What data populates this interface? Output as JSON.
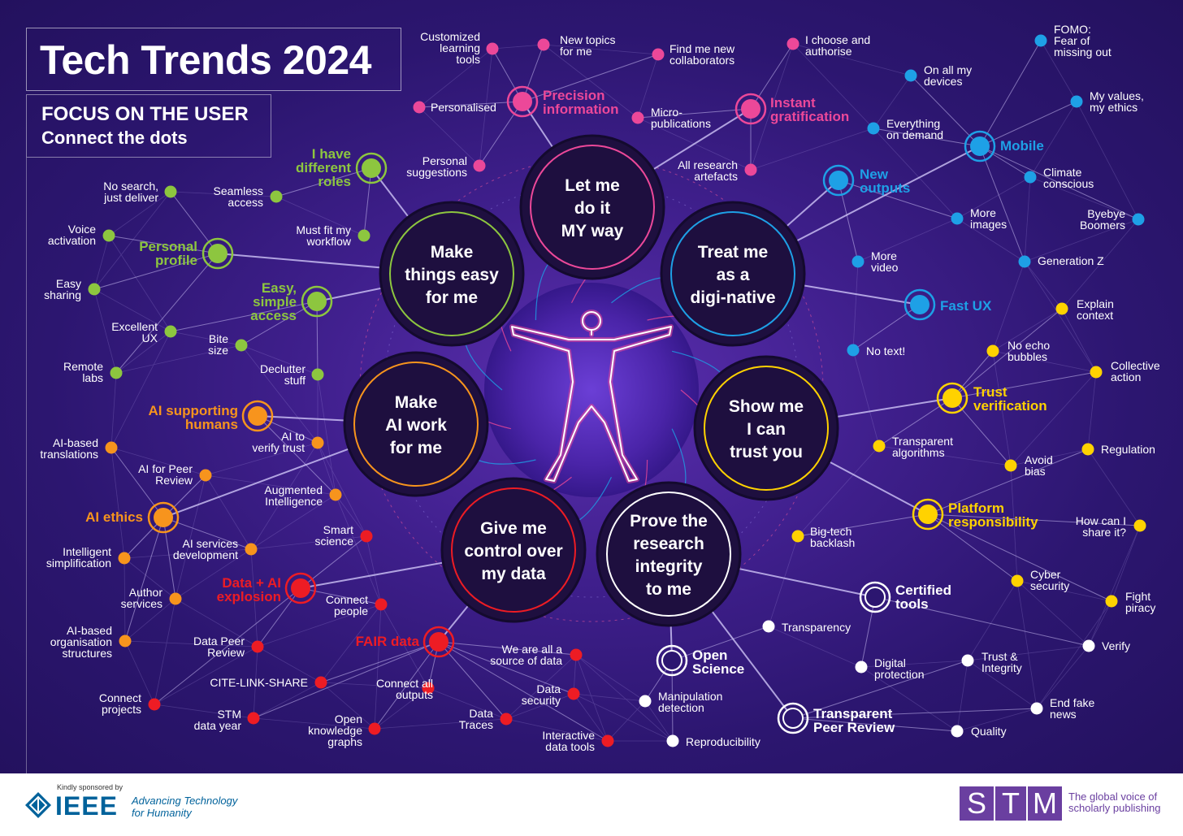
{
  "title": "Tech Trends 2024",
  "subtitle": {
    "line1": "FOCUS ON THE USER",
    "line2": "Connect the dots"
  },
  "colors": {
    "green": "#8dc63f",
    "orange": "#f7941d",
    "red": "#ed1c24",
    "pink": "#ec4899",
    "blue": "#1ea0e6",
    "yellow": "#ffd200",
    "white": "#ffffff",
    "background": "#2c1670"
  },
  "center_figure": "vitruvian-figure-icon",
  "themes": [
    {
      "id": "make-easy",
      "text": "Make\nthings easy\nfor me",
      "color": "green"
    },
    {
      "id": "my-way",
      "text": "Let me\ndo it\nMY way",
      "color": "pink"
    },
    {
      "id": "digi-native",
      "text": "Treat me\nas a\ndigi-native",
      "color": "blue"
    },
    {
      "id": "ai-work",
      "text": "Make\nAI work\nfor me",
      "color": "orange"
    },
    {
      "id": "trust",
      "text": "Show me\nI can\ntrust you",
      "color": "yellow"
    },
    {
      "id": "control-data",
      "text": "Give me\ncontrol over\nmy data",
      "color": "red"
    },
    {
      "id": "integrity",
      "text": "Prove the\nresearch\nintegrity\nto me",
      "color": "white"
    }
  ],
  "hubs": [
    {
      "id": "different-roles",
      "text": "I have\ndifferent\nroles",
      "color": "green",
      "theme": "make-easy"
    },
    {
      "id": "personal-profile",
      "text": "Personal\nprofile",
      "color": "green",
      "theme": "make-easy"
    },
    {
      "id": "easy-access",
      "text": "Easy,\nsimple\naccess",
      "color": "green",
      "theme": "make-easy"
    },
    {
      "id": "precision-info",
      "text": "Precision\ninformation",
      "color": "pink",
      "theme": "my-way"
    },
    {
      "id": "instant-grat",
      "text": "Instant\ngratification",
      "color": "pink",
      "theme": "my-way"
    },
    {
      "id": "new-outputs",
      "text": "New\noutputs",
      "color": "blue",
      "theme": "digi-native"
    },
    {
      "id": "mobile",
      "text": "Mobile",
      "color": "blue",
      "theme": "digi-native"
    },
    {
      "id": "fast-ux",
      "text": "Fast UX",
      "color": "blue",
      "theme": "digi-native"
    },
    {
      "id": "ai-supporting",
      "text": "AI supporting\nhumans",
      "color": "orange",
      "theme": "ai-work"
    },
    {
      "id": "ai-ethics",
      "text": "AI ethics",
      "color": "orange",
      "theme": "ai-work"
    },
    {
      "id": "data-ai",
      "text": "Data + AI\nexplosion",
      "color": "red",
      "theme": "control-data"
    },
    {
      "id": "fair-data",
      "text": "FAIR data",
      "color": "red",
      "theme": "control-data"
    },
    {
      "id": "trust-verif",
      "text": "Trust\nverification",
      "color": "yellow",
      "theme": "trust"
    },
    {
      "id": "platform-resp",
      "text": "Platform\nresponsibility",
      "color": "yellow",
      "theme": "trust"
    },
    {
      "id": "certified",
      "text": "Certified\ntools",
      "color": "white",
      "theme": "integrity"
    },
    {
      "id": "open-science",
      "text": "Open\nScience",
      "color": "white",
      "theme": "integrity"
    },
    {
      "id": "transp-peer",
      "text": "Transparent\nPeer Review",
      "color": "white",
      "theme": "integrity"
    }
  ],
  "nodes": [
    {
      "text": "No search,\njust deliver",
      "color": "green",
      "hub": "personal-profile"
    },
    {
      "text": "Seamless\naccess",
      "color": "green",
      "hub": "different-roles"
    },
    {
      "text": "Voice\nactivation",
      "color": "green",
      "hub": "personal-profile"
    },
    {
      "text": "Must fit my\nworkflow",
      "color": "green",
      "hub": "different-roles"
    },
    {
      "text": "Easy\nsharing",
      "color": "green",
      "hub": "personal-profile"
    },
    {
      "text": "Excellent\nUX",
      "color": "green",
      "hub": "easy-access"
    },
    {
      "text": "Bite\nsize",
      "color": "green",
      "hub": "easy-access"
    },
    {
      "text": "Remote\nlabs",
      "color": "green",
      "hub": "personal-profile"
    },
    {
      "text": "Declutter\nstuff",
      "color": "green",
      "hub": "easy-access"
    },
    {
      "text": "Customized\nlearning\ntools",
      "color": "pink",
      "hub": "precision-info"
    },
    {
      "text": "New topics\nfor me",
      "color": "pink",
      "hub": "precision-info"
    },
    {
      "text": "Find me new\ncollaborators",
      "color": "pink",
      "hub": "precision-info"
    },
    {
      "text": "I choose and\nauthorise",
      "color": "pink",
      "hub": "instant-grat"
    },
    {
      "text": "Personalised",
      "color": "pink",
      "hub": "precision-info"
    },
    {
      "text": "Micro-\npublications",
      "color": "pink",
      "hub": "instant-grat"
    },
    {
      "text": "Personal\nsuggestions",
      "color": "pink",
      "hub": "precision-info"
    },
    {
      "text": "All research\nartefacts",
      "color": "pink",
      "hub": "instant-grat"
    },
    {
      "text": "FOMO:\nFear of\nmissing out",
      "color": "blue",
      "hub": "mobile"
    },
    {
      "text": "On all my\ndevices",
      "color": "blue",
      "hub": "mobile"
    },
    {
      "text": "My values,\nmy ethics",
      "color": "blue",
      "hub": "mobile"
    },
    {
      "text": "Everything\non demand",
      "color": "blue",
      "hub": "mobile"
    },
    {
      "text": "Climate\nconscious",
      "color": "blue",
      "hub": "mobile"
    },
    {
      "text": "More\nimages",
      "color": "blue",
      "hub": "new-outputs"
    },
    {
      "text": "Byebye\nBoomers",
      "color": "blue",
      "hub": "mobile"
    },
    {
      "text": "More\nvideo",
      "color": "blue",
      "hub": "new-outputs"
    },
    {
      "text": "Generation Z",
      "color": "blue",
      "hub": "mobile"
    },
    {
      "text": "No text!",
      "color": "blue",
      "hub": "fast-ux"
    },
    {
      "text": "AI-based\ntranslations",
      "color": "orange",
      "hub": "ai-ethics"
    },
    {
      "text": "AI to\nverify trust",
      "color": "orange",
      "hub": "ai-supporting"
    },
    {
      "text": "AI for Peer\nReview",
      "color": "orange",
      "hub": "ai-ethics"
    },
    {
      "text": "Augmented\nIntelligence",
      "color": "orange",
      "hub": "ai-supporting"
    },
    {
      "text": "Intelligent\nsimplification",
      "color": "orange",
      "hub": "ai-ethics"
    },
    {
      "text": "AI services\ndevelopment",
      "color": "orange",
      "hub": "ai-ethics"
    },
    {
      "text": "Author\nservices",
      "color": "orange",
      "hub": "ai-ethics"
    },
    {
      "text": "AI-based\norganisation\nstructures",
      "color": "orange",
      "hub": "ai-ethics"
    },
    {
      "text": "Smart\nscience",
      "color": "red",
      "hub": "data-ai"
    },
    {
      "text": "Connect\npeople",
      "color": "red",
      "hub": "data-ai"
    },
    {
      "text": "Data Peer\nReview",
      "color": "red",
      "hub": "data-ai"
    },
    {
      "text": "CITE-LINK-SHARE",
      "color": "red",
      "hub": "fair-data"
    },
    {
      "text": "Connect\nprojects",
      "color": "red",
      "hub": "data-ai"
    },
    {
      "text": "STM\ndata year",
      "color": "red",
      "hub": "fair-data"
    },
    {
      "text": "Connect all\noutputs",
      "color": "red",
      "hub": "fair-data"
    },
    {
      "text": "Open\nknowledge\ngraphs",
      "color": "red",
      "hub": "fair-data"
    },
    {
      "text": "We are all a\nsource of data",
      "color": "red",
      "hub": "fair-data"
    },
    {
      "text": "Data\nsecurity",
      "color": "red",
      "hub": "fair-data"
    },
    {
      "text": "Data\nTraces",
      "color": "red",
      "hub": "fair-data"
    },
    {
      "text": "Interactive\ndata tools",
      "color": "red",
      "hub": "fair-data"
    },
    {
      "text": "Explain\ncontext",
      "color": "yellow",
      "hub": "trust-verif"
    },
    {
      "text": "No echo\nbubbles",
      "color": "yellow",
      "hub": "trust-verif"
    },
    {
      "text": "Collective\naction",
      "color": "yellow",
      "hub": "trust-verif"
    },
    {
      "text": "Transparent\nalgorithms",
      "color": "yellow",
      "hub": "trust-verif"
    },
    {
      "text": "Avoid\nbias",
      "color": "yellow",
      "hub": "trust-verif"
    },
    {
      "text": "Regulation",
      "color": "yellow",
      "hub": "platform-resp"
    },
    {
      "text": "How can I\nshare it?",
      "color": "yellow",
      "hub": "platform-resp"
    },
    {
      "text": "Big-tech\nbacklash",
      "color": "yellow",
      "hub": "platform-resp"
    },
    {
      "text": "Cyber\nsecurity",
      "color": "yellow",
      "hub": "platform-resp"
    },
    {
      "text": "Fight\npiracy",
      "color": "yellow",
      "hub": "platform-resp"
    },
    {
      "text": "Transparency",
      "color": "white",
      "hub": "open-science"
    },
    {
      "text": "Verify",
      "color": "white",
      "hub": "certified"
    },
    {
      "text": "Digital\nprotection",
      "color": "white",
      "hub": "certified"
    },
    {
      "text": "Trust &\nIntegrity",
      "color": "white",
      "hub": "transp-peer"
    },
    {
      "text": "Manipulation\ndetection",
      "color": "white",
      "hub": "open-science"
    },
    {
      "text": "End fake\nnews",
      "color": "white",
      "hub": "transp-peer"
    },
    {
      "text": "Reproducibility",
      "color": "white",
      "hub": "open-science"
    },
    {
      "text": "Quality",
      "color": "white",
      "hub": "transp-peer"
    }
  ],
  "footer": {
    "sponsor_text": "Kindly sponsored by",
    "ieee_name": "IEEE",
    "ieee_tagline": "Advancing Technology\nfor Humanity",
    "stm_letters": [
      "S",
      "T",
      "M"
    ],
    "stm_tagline": "The global voice of\nscholarly publishing"
  }
}
